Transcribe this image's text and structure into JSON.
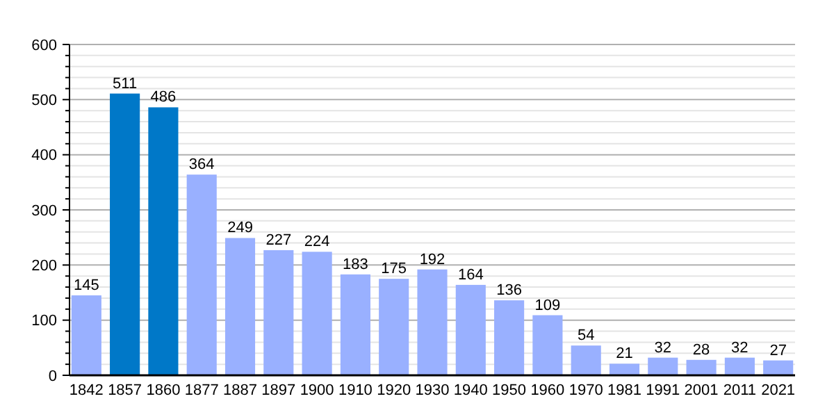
{
  "chart_data": {
    "type": "bar",
    "categories": [
      "1842",
      "1857",
      "1860",
      "1877",
      "1887",
      "1897",
      "1900",
      "1910",
      "1920",
      "1930",
      "1940",
      "1950",
      "1960",
      "1970",
      "1981",
      "1991",
      "2001",
      "2011",
      "2021"
    ],
    "values": [
      145,
      511,
      486,
      364,
      249,
      227,
      224,
      183,
      175,
      192,
      164,
      136,
      109,
      54,
      21,
      32,
      28,
      32,
      27
    ],
    "colors": [
      "#99b0ff",
      "#0078c8",
      "#0078c8",
      "#99b0ff",
      "#99b0ff",
      "#99b0ff",
      "#99b0ff",
      "#99b0ff",
      "#99b0ff",
      "#99b0ff",
      "#99b0ff",
      "#99b0ff",
      "#99b0ff",
      "#99b0ff",
      "#99b0ff",
      "#99b0ff",
      "#99b0ff",
      "#99b0ff",
      "#99b0ff"
    ],
    "data_labels": true,
    "ylim": [
      0,
      600
    ],
    "yticks": [
      0,
      {
        "value": 20,
        "label": null
      },
      {
        "value": 40,
        "label": null
      },
      {
        "value": 60,
        "label": null
      },
      {
        "value": 80,
        "label": null
      },
      100,
      {
        "value": 120,
        "label": null
      },
      {
        "value": 140,
        "label": null
      },
      {
        "value": 160,
        "label": null
      },
      {
        "value": 180,
        "label": null
      },
      200,
      {
        "value": 220,
        "label": null
      },
      {
        "value": 240,
        "label": null
      },
      {
        "value": 260,
        "label": null
      },
      {
        "value": 280,
        "label": null
      },
      300,
      {
        "value": 320,
        "label": null
      },
      {
        "value": 340,
        "label": null
      },
      {
        "value": 360,
        "label": null
      },
      {
        "value": 380,
        "label": null
      },
      400,
      {
        "value": 420,
        "label": null
      },
      {
        "value": 440,
        "label": null
      },
      {
        "value": 460,
        "label": null
      },
      {
        "value": 480,
        "label": null
      },
      500,
      {
        "value": 520,
        "label": null
      },
      {
        "value": 540,
        "label": null
      },
      {
        "value": 560,
        "label": null
      },
      {
        "value": 580,
        "label": null
      },
      600
    ],
    "grid": true
  }
}
